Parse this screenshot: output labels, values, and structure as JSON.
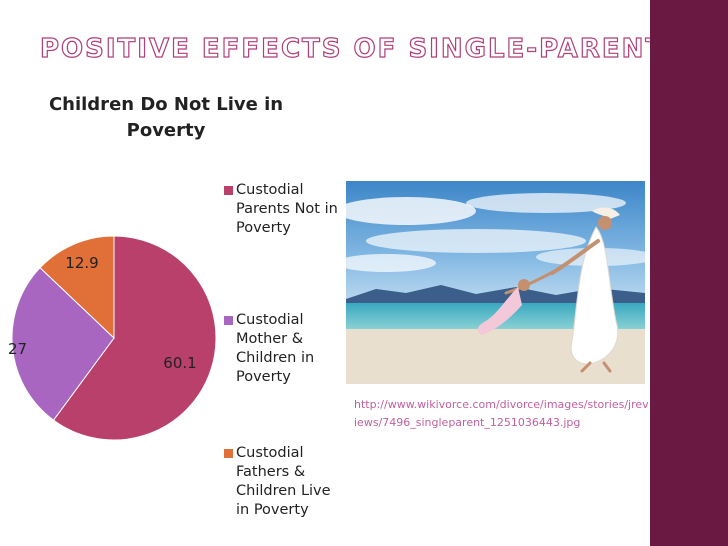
{
  "slide": {
    "title": "Positive Effects of Single-Parenting",
    "image_caption_url": "http://www.wikivorce.com/divorce/images/stories/jreviews/7496_singleparent_1251036443.jpg"
  },
  "colors": {
    "title_outline": "#b0407a",
    "side_bar": "#6a1a42",
    "url_text": "#c060a0"
  },
  "chart_data": {
    "type": "pie",
    "title": "Children Do Not Live in Poverty",
    "series": [
      {
        "name": "Custodial Parents Not in Poverty",
        "value": 60.1,
        "label": "60.1",
        "color": "#b8406a"
      },
      {
        "name": "Custodial Mother & Children in Poverty",
        "value": 27,
        "label": "27",
        "color": "#a866c0"
      },
      {
        "name": "Custodial Fathers & Children Live in Poverty",
        "value": 12.9,
        "label": "12.9",
        "color": "#e07038"
      }
    ],
    "legend_position": "right"
  }
}
